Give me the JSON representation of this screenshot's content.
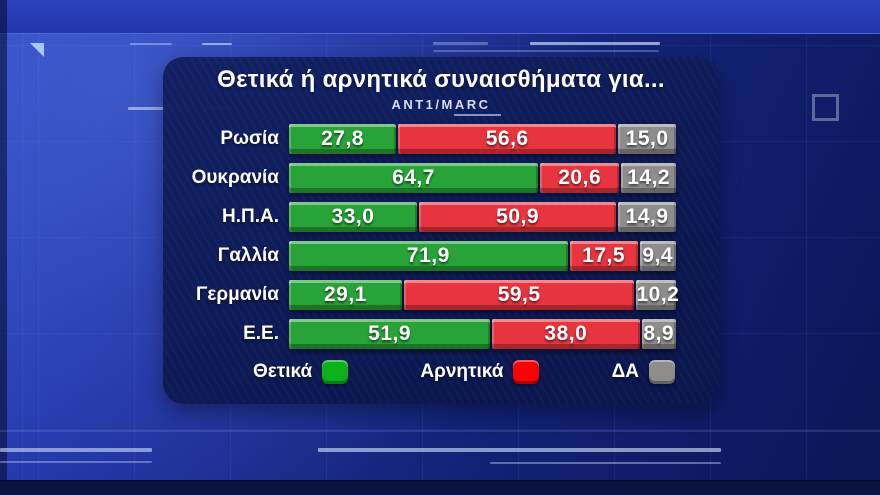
{
  "chart_data": {
    "type": "bar",
    "orientation": "horizontal",
    "stacked": true,
    "title": "Θετικά ή αρνητικά συναισθήματα για...",
    "source": "ANT1/MARC",
    "xlim": [
      0,
      100
    ],
    "decimal_separator": ",",
    "categories": [
      "Ρωσία",
      "Ουκρανία",
      "Η.Π.Α.",
      "Γαλλία",
      "Γερμανία",
      "Ε.Ε."
    ],
    "series": [
      {
        "key": "positive",
        "name": "Θετικά",
        "color": "#27a337",
        "values": [
          27.8,
          64.7,
          33.0,
          71.9,
          29.1,
          51.9
        ]
      },
      {
        "key": "negative",
        "name": "Αρνητικά",
        "color": "#e8343f",
        "values": [
          56.6,
          20.6,
          50.9,
          17.5,
          59.5,
          38.0
        ]
      },
      {
        "key": "na",
        "name": "ΔΑ",
        "color": "#8d8d8c",
        "values": [
          15.0,
          14.2,
          14.9,
          9.4,
          10.2,
          8.9
        ]
      }
    ],
    "legend": {
      "position": "bottom",
      "items": [
        {
          "key": "positive",
          "label": "Θετικά",
          "color": "#0cb01a"
        },
        {
          "key": "negative",
          "label": "Αρνητικά",
          "color": "#f70408"
        },
        {
          "key": "na",
          "label": "ΔΑ",
          "color": "#8e8d8b"
        }
      ]
    }
  }
}
